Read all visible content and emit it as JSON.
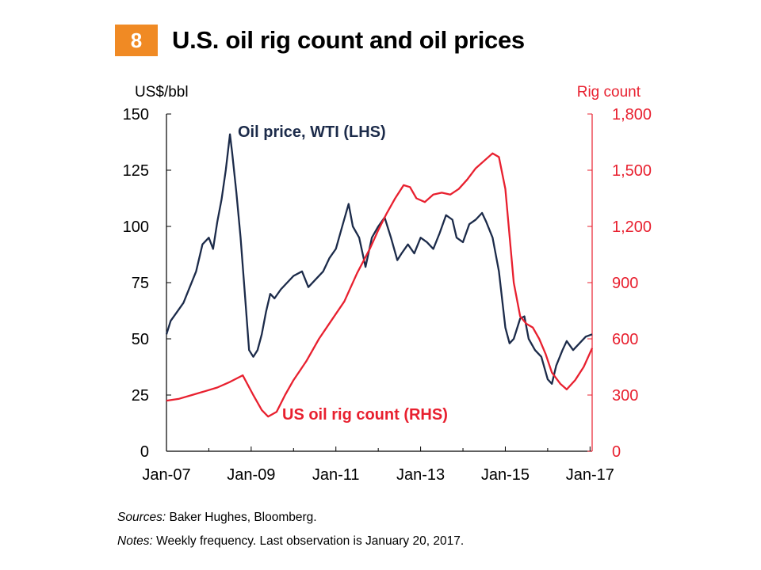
{
  "figure_number": "8",
  "title": "U.S. oil rig count and oil prices",
  "sources_label": "Sources:",
  "sources_text": " Baker Hughes, Bloomberg.",
  "notes_label": "Notes:",
  "notes_text": " Weekly frequency. Last observation is January 20, 2017.",
  "colors": {
    "badge": "#f08a24",
    "oil": "#1c2b4a",
    "rig": "#e8202f"
  },
  "chart_data": {
    "type": "line",
    "title": "U.S. oil rig count and oil prices",
    "xlabel": "",
    "ylabel_left": "US$/bbl",
    "ylabel_right": "Rig count",
    "x_tick_labels": [
      "Jan-07",
      "Jan-09",
      "Jan-11",
      "Jan-13",
      "Jan-15",
      "Jan-17"
    ],
    "x_range": [
      2007.0,
      2017.05
    ],
    "ylim_left": [
      0,
      150
    ],
    "ylim_right": [
      0,
      1800
    ],
    "y_ticks_left": [
      "0",
      "25",
      "50",
      "75",
      "100",
      "125",
      "150"
    ],
    "y_ticks_right": [
      "0",
      "300",
      "600",
      "900",
      "1,200",
      "1,500",
      "1,800"
    ],
    "series": [
      {
        "name": "Oil price, WTI (LHS)",
        "axis": "left",
        "color": "#1c2b4a",
        "points": [
          [
            2007.0,
            52
          ],
          [
            2007.1,
            58
          ],
          [
            2007.25,
            62
          ],
          [
            2007.4,
            66
          ],
          [
            2007.55,
            73
          ],
          [
            2007.7,
            80
          ],
          [
            2007.85,
            92
          ],
          [
            2008.0,
            95
          ],
          [
            2008.1,
            90
          ],
          [
            2008.2,
            102
          ],
          [
            2008.3,
            112
          ],
          [
            2008.4,
            125
          ],
          [
            2008.5,
            141
          ],
          [
            2008.55,
            133
          ],
          [
            2008.65,
            115
          ],
          [
            2008.75,
            95
          ],
          [
            2008.85,
            70
          ],
          [
            2008.95,
            45
          ],
          [
            2009.05,
            42
          ],
          [
            2009.15,
            45
          ],
          [
            2009.25,
            52
          ],
          [
            2009.35,
            62
          ],
          [
            2009.45,
            70
          ],
          [
            2009.55,
            68
          ],
          [
            2009.7,
            72
          ],
          [
            2009.85,
            75
          ],
          [
            2010.0,
            78
          ],
          [
            2010.2,
            80
          ],
          [
            2010.35,
            73
          ],
          [
            2010.5,
            76
          ],
          [
            2010.7,
            80
          ],
          [
            2010.85,
            86
          ],
          [
            2011.0,
            90
          ],
          [
            2011.15,
            100
          ],
          [
            2011.3,
            110
          ],
          [
            2011.4,
            100
          ],
          [
            2011.55,
            95
          ],
          [
            2011.7,
            82
          ],
          [
            2011.85,
            95
          ],
          [
            2012.0,
            100
          ],
          [
            2012.15,
            104
          ],
          [
            2012.3,
            95
          ],
          [
            2012.45,
            85
          ],
          [
            2012.55,
            88
          ],
          [
            2012.7,
            92
          ],
          [
            2012.85,
            88
          ],
          [
            2013.0,
            95
          ],
          [
            2013.15,
            93
          ],
          [
            2013.3,
            90
          ],
          [
            2013.45,
            97
          ],
          [
            2013.6,
            105
          ],
          [
            2013.75,
            103
          ],
          [
            2013.85,
            95
          ],
          [
            2014.0,
            93
          ],
          [
            2014.15,
            101
          ],
          [
            2014.3,
            103
          ],
          [
            2014.45,
            106
          ],
          [
            2014.55,
            102
          ],
          [
            2014.7,
            95
          ],
          [
            2014.85,
            80
          ],
          [
            2015.0,
            55
          ],
          [
            2015.1,
            48
          ],
          [
            2015.2,
            50
          ],
          [
            2015.35,
            59
          ],
          [
            2015.45,
            60
          ],
          [
            2015.55,
            50
          ],
          [
            2015.7,
            45
          ],
          [
            2015.85,
            42
          ],
          [
            2016.0,
            32
          ],
          [
            2016.1,
            30
          ],
          [
            2016.2,
            38
          ],
          [
            2016.35,
            45
          ],
          [
            2016.45,
            49
          ],
          [
            2016.6,
            45
          ],
          [
            2016.75,
            48
          ],
          [
            2016.9,
            51
          ],
          [
            2017.05,
            52
          ]
        ]
      },
      {
        "name": "US oil rig count (RHS)",
        "axis": "right",
        "color": "#e8202f",
        "points": [
          [
            2007.0,
            270
          ],
          [
            2007.3,
            280
          ],
          [
            2007.6,
            300
          ],
          [
            2007.9,
            320
          ],
          [
            2008.2,
            340
          ],
          [
            2008.5,
            370
          ],
          [
            2008.8,
            405
          ],
          [
            2009.05,
            300
          ],
          [
            2009.25,
            220
          ],
          [
            2009.4,
            185
          ],
          [
            2009.6,
            210
          ],
          [
            2009.8,
            300
          ],
          [
            2010.0,
            380
          ],
          [
            2010.3,
            480
          ],
          [
            2010.6,
            600
          ],
          [
            2010.9,
            700
          ],
          [
            2011.2,
            800
          ],
          [
            2011.5,
            950
          ],
          [
            2011.8,
            1080
          ],
          [
            2012.0,
            1180
          ],
          [
            2012.2,
            1270
          ],
          [
            2012.4,
            1350
          ],
          [
            2012.6,
            1420
          ],
          [
            2012.75,
            1410
          ],
          [
            2012.9,
            1350
          ],
          [
            2013.1,
            1330
          ],
          [
            2013.3,
            1370
          ],
          [
            2013.5,
            1380
          ],
          [
            2013.7,
            1370
          ],
          [
            2013.9,
            1400
          ],
          [
            2014.1,
            1450
          ],
          [
            2014.3,
            1510
          ],
          [
            2014.5,
            1550
          ],
          [
            2014.7,
            1590
          ],
          [
            2014.85,
            1570
          ],
          [
            2015.0,
            1400
          ],
          [
            2015.1,
            1150
          ],
          [
            2015.2,
            900
          ],
          [
            2015.35,
            720
          ],
          [
            2015.5,
            680
          ],
          [
            2015.65,
            660
          ],
          [
            2015.8,
            600
          ],
          [
            2015.95,
            520
          ],
          [
            2016.1,
            420
          ],
          [
            2016.3,
            360
          ],
          [
            2016.45,
            330
          ],
          [
            2016.65,
            380
          ],
          [
            2016.85,
            450
          ],
          [
            2017.05,
            550
          ]
        ]
      }
    ],
    "annotations": [
      "Oil price, WTI (LHS)",
      "US oil rig count (RHS)"
    ]
  }
}
